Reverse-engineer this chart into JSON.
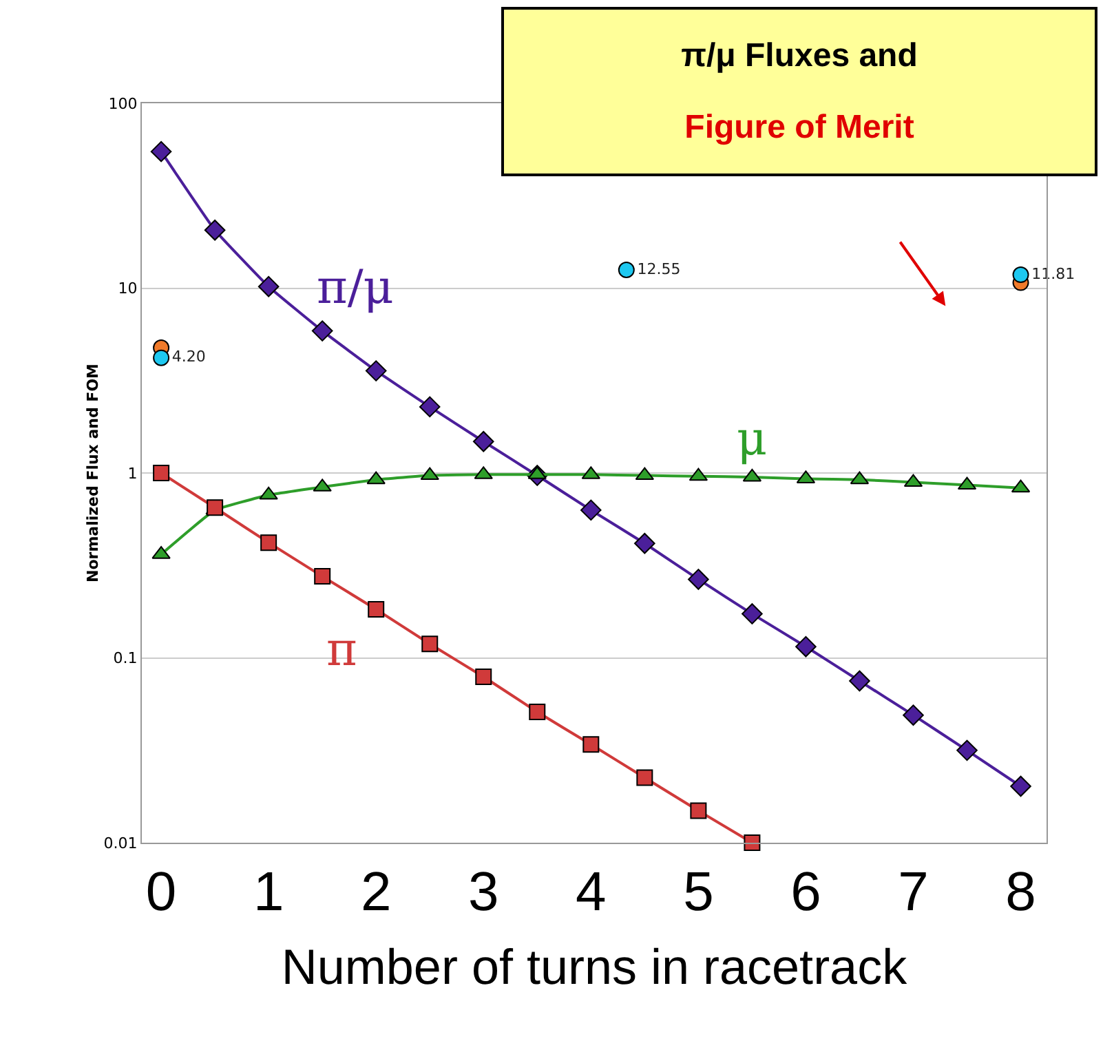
{
  "chart_data": {
    "type": "line",
    "title": "π/μ Fluxes and",
    "subtitle": "Figure of Merit",
    "xlabel": "Number of turns in racetrack",
    "ylabel": "Normalized Flux and FOM",
    "log": "y",
    "grid": "y",
    "legend": false,
    "xlim": [
      -0.18,
      8.24
    ],
    "xticks": [
      0,
      1,
      2,
      3,
      4,
      5,
      6,
      7,
      8
    ],
    "ylim": [
      0.01,
      100
    ],
    "yticks": [
      0.01,
      0.1,
      1,
      10,
      100
    ],
    "series": [
      {
        "color": "#4b1f9a",
        "marker": "diamond",
        "x": [
          0,
          0.5,
          1,
          1.5,
          2,
          2.5,
          3,
          3.5,
          4,
          4.5,
          5,
          5.5,
          6,
          6.5,
          7,
          7.5,
          8
        ],
        "values": [
          54.8,
          20.6,
          10.2,
          5.87,
          3.57,
          2.28,
          1.48,
          0.97,
          0.63,
          0.416,
          0.266,
          0.173,
          0.115,
          0.075,
          0.049,
          0.0316,
          0.0202
        ]
      },
      {
        "color": "#2e9e2a",
        "marker": "triangle",
        "x": [
          0,
          0.5,
          1,
          1.5,
          2,
          2.5,
          3,
          3.5,
          4,
          4.5,
          5,
          5.5,
          6,
          6.5,
          7,
          7.5,
          8
        ],
        "values": [
          0.363,
          0.63,
          0.76,
          0.84,
          0.92,
          0.97,
          0.98,
          0.98,
          0.98,
          0.97,
          0.96,
          0.95,
          0.93,
          0.92,
          0.89,
          0.86,
          0.83
        ]
      },
      {
        "color": "#d03a3a",
        "marker": "square",
        "x": [
          0,
          0.5,
          1,
          1.5,
          2,
          2.5,
          3,
          3.5,
          4,
          4.5,
          5,
          5.5
        ],
        "values": [
          1.0,
          0.65,
          0.42,
          0.276,
          0.183,
          0.119,
          0.079,
          0.051,
          0.034,
          0.0225,
          0.0149,
          0.01
        ]
      },
      {
        "type": "scatter",
        "color": "#f07a2a",
        "marker": "circle",
        "x": [
          0,
          8
        ],
        "values": [
          4.76,
          10.7
        ]
      },
      {
        "type": "scatter",
        "color": "#1ec8f0",
        "marker": "circle",
        "x": [
          0,
          4.33,
          8
        ],
        "values": [
          4.2,
          12.55,
          11.81
        ],
        "value_labels": [
          "4.20",
          "12.55",
          "11.81"
        ]
      }
    ],
    "annotations": [
      "π/μ",
      "μ",
      "π"
    ]
  }
}
